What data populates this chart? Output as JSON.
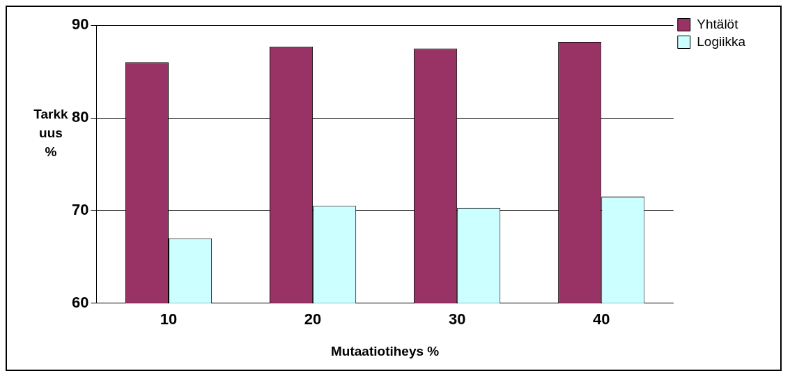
{
  "chart_data": {
    "type": "bar",
    "xlabel": "Mutaatiotiheys %",
    "ylabel": "Tarkkuus %",
    "categories": [
      "10",
      "20",
      "30",
      "40"
    ],
    "series": [
      {
        "name": "Yhtälöt",
        "color": "#993366",
        "values": [
          86,
          87.7,
          87.5,
          88.2
        ]
      },
      {
        "name": "Logiikka",
        "color": "#ccffff",
        "values": [
          67,
          70.5,
          70.3,
          71.5
        ]
      }
    ],
    "ylim": [
      60,
      90
    ],
    "yticks": [
      60,
      70,
      80,
      90
    ],
    "grid": "y",
    "legend": "top right"
  }
}
